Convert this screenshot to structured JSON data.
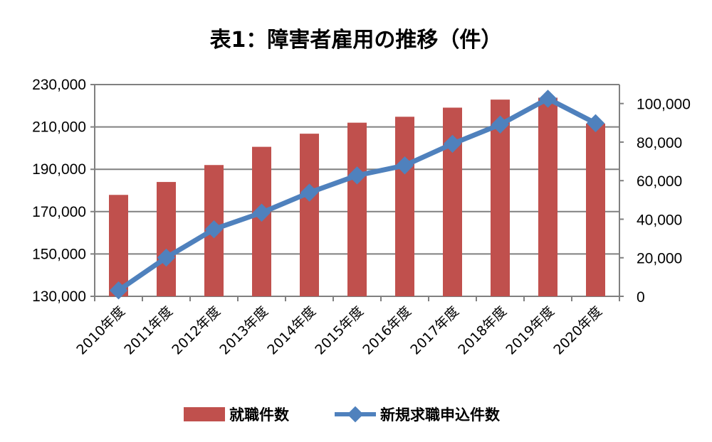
{
  "chart_data": {
    "type": "bar+line",
    "title": "表1：障害者雇用の推移（件）",
    "categories": [
      "2010年度",
      "2011年度",
      "2012年度",
      "2013年度",
      "2014年度",
      "2015年度",
      "2016年度",
      "2017年度",
      "2018年度",
      "2019年度",
      "2020年度"
    ],
    "series": [
      {
        "name": "就職件数",
        "type": "bar",
        "axis": "left",
        "color": "#C0504D",
        "values": [
          177900,
          184000,
          192000,
          200600,
          206800,
          212000,
          214800,
          219100,
          222900,
          223800,
          211600
        ]
      },
      {
        "name": "新規求職申込件数",
        "type": "line",
        "axis": "right",
        "color": "#4F81BD",
        "values": [
          3100,
          20100,
          34800,
          43400,
          53800,
          62700,
          67900,
          79100,
          89100,
          102500,
          89800
        ]
      }
    ],
    "left_axis": {
      "ylim": [
        130000,
        230000
      ],
      "ticks": [
        "130,000",
        "150,000",
        "170,000",
        "190,000",
        "210,000",
        "230,000"
      ],
      "tick_values": [
        130000,
        150000,
        170000,
        190000,
        210000,
        230000
      ]
    },
    "right_axis": {
      "ylim": [
        0,
        110000
      ],
      "ticks": [
        "0",
        "20,000",
        "40,000",
        "60,000",
        "80,000",
        "100,000"
      ],
      "tick_values": [
        0,
        20000,
        40000,
        60000,
        80000,
        100000
      ]
    },
    "grid": true,
    "legend": "bottom"
  }
}
